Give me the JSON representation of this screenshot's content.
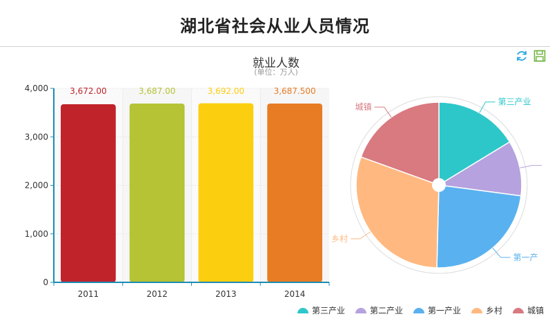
{
  "page": {
    "title": "湖北省社会从业人员情况"
  },
  "toolbar": {
    "refresh_icon": "refresh-icon",
    "save_icon": "save-icon",
    "color": "#2ea7e0"
  },
  "chart_data": [
    {
      "type": "bar",
      "title": "就业人数",
      "subtitle": "(单位：万人)",
      "categories": [
        "2011",
        "2012",
        "2013",
        "2014"
      ],
      "values": [
        3672,
        3687,
        3692,
        3687.5
      ],
      "data_labels": [
        "3,672.00",
        "3,687.00",
        "3,692.00",
        "3,687.500"
      ],
      "colors": [
        "#c1232b",
        "#b5c334",
        "#fcce10",
        "#e87c25"
      ],
      "ylim": [
        0,
        4000
      ],
      "yticks": [
        "0",
        "1,000",
        "2,000",
        "3,000",
        "4,000"
      ],
      "grid": true,
      "xlabel": "",
      "ylabel": ""
    },
    {
      "type": "pie",
      "slices": [
        {
          "name": "第三产业",
          "value": 16.3,
          "color": "#2ec7c9"
        },
        {
          "name": "第二产业",
          "value": 10.8,
          "color": "#b6a2de"
        },
        {
          "name": "第一产业",
          "value": 23.3,
          "color": "#5ab1ef"
        },
        {
          "name": "乡村",
          "value": 30.1,
          "color": "#ffb980"
        },
        {
          "name": "城镇",
          "value": 19.5,
          "color": "#d87a80"
        }
      ],
      "labels": {
        "visible": [
          "第三产业",
          "",
          "第一产",
          "乡村",
          "城镇"
        ],
        "placement": "outside"
      },
      "legend": {
        "placement": "bottom-right",
        "items": [
          "第三产业",
          "第二产业",
          "第一产业",
          "乡村",
          "城镇"
        ]
      }
    }
  ]
}
